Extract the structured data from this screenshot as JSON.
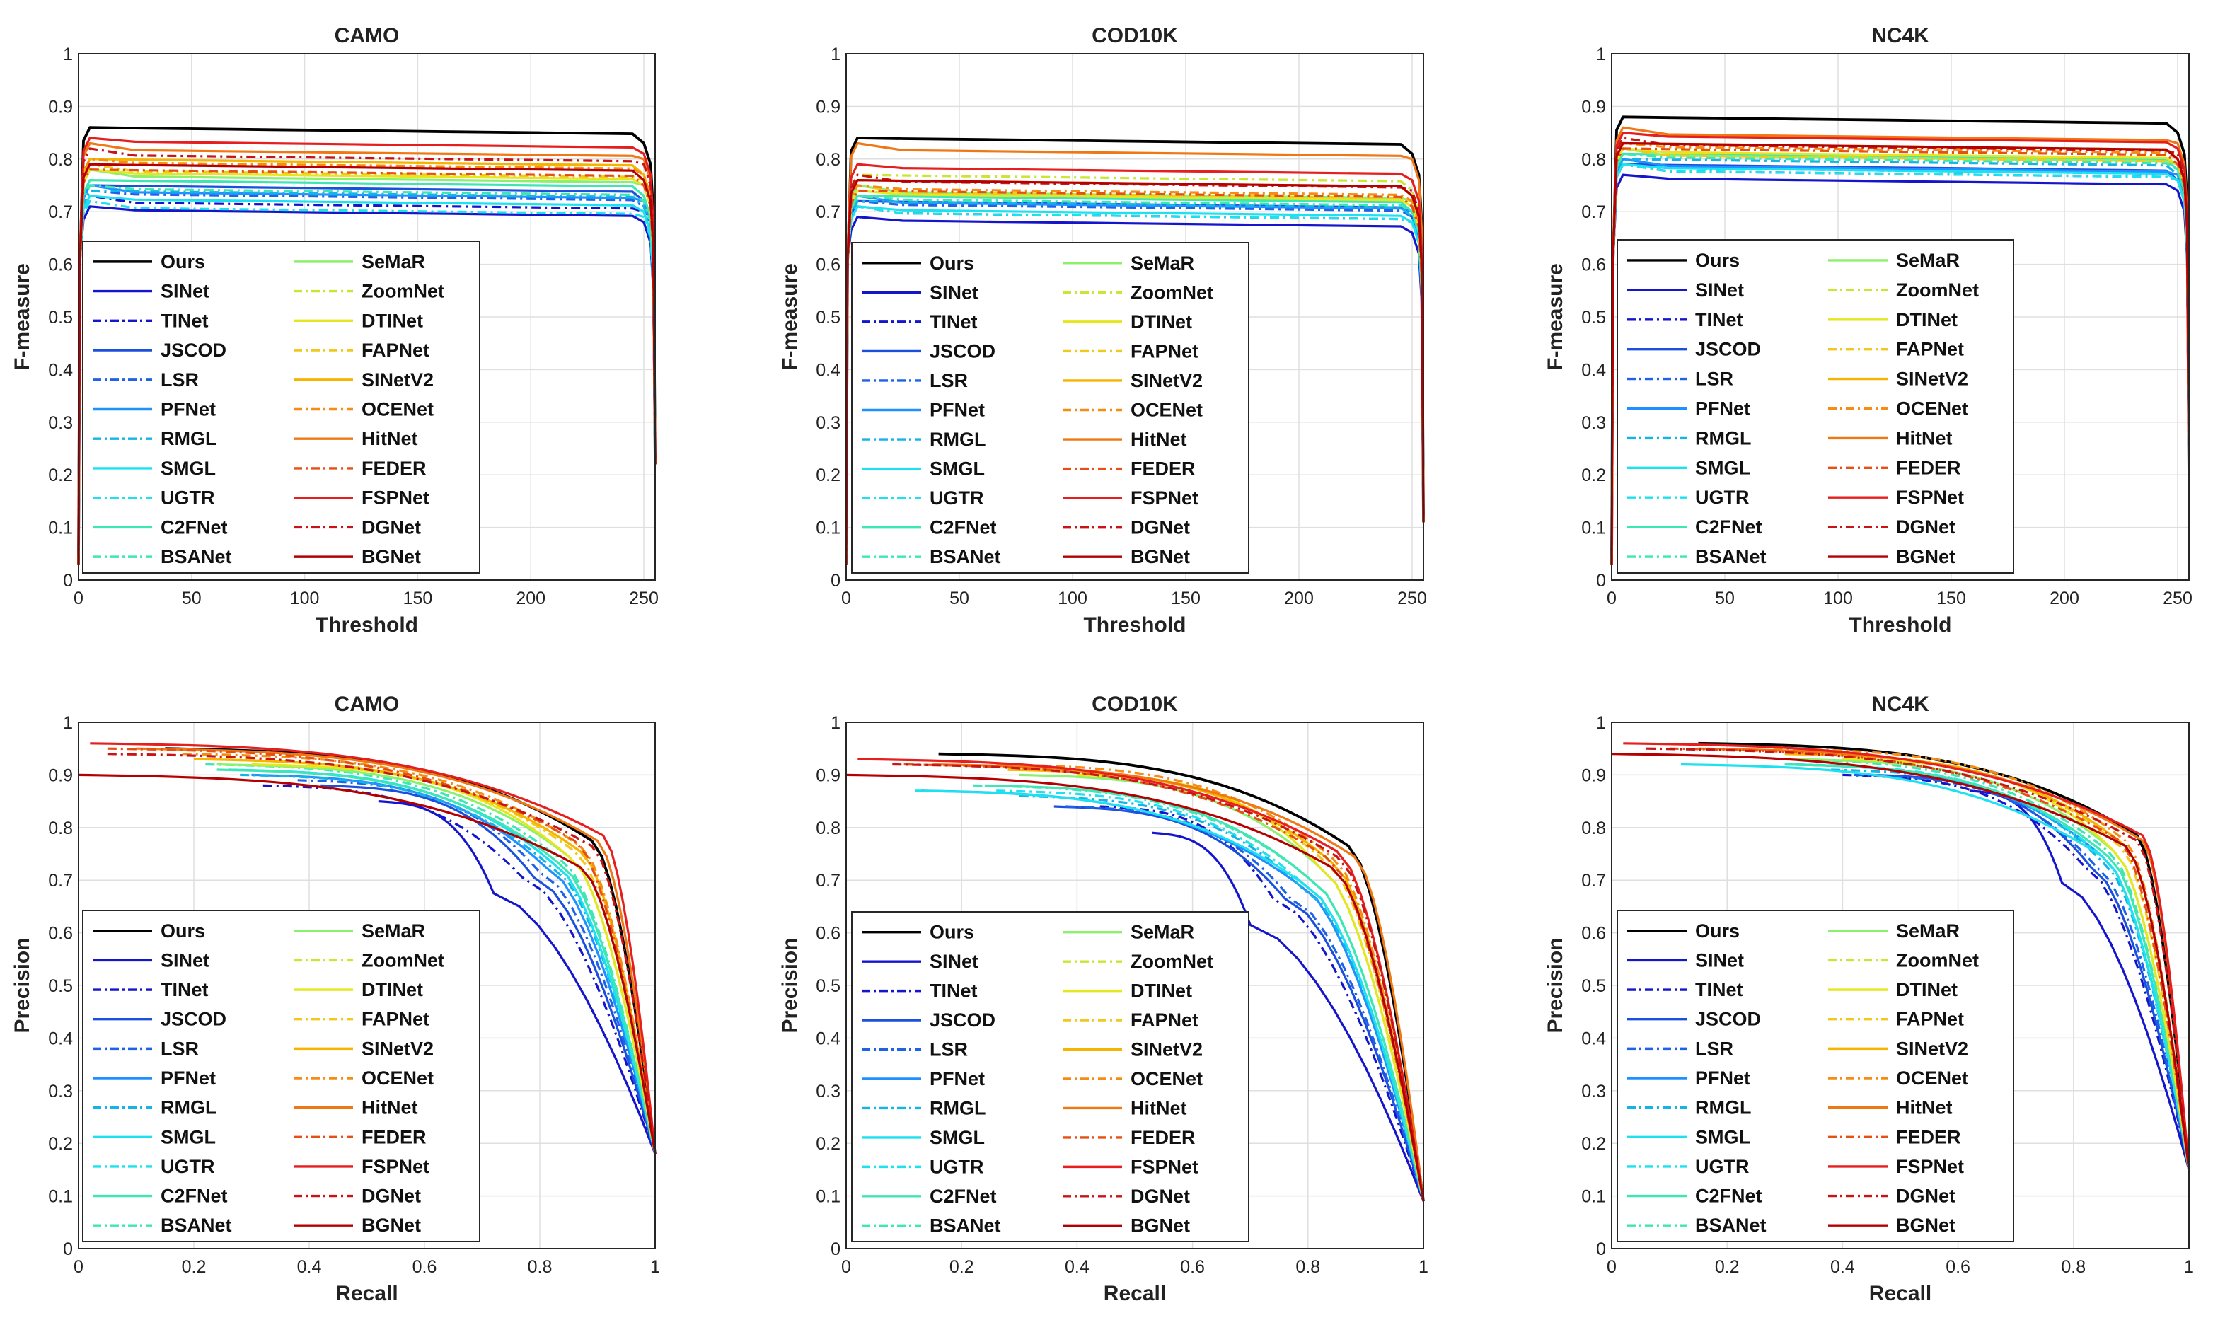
{
  "figure": {
    "panel_titles": [
      "CAMO",
      "COD10K",
      "NC4K"
    ]
  },
  "methods": [
    {
      "name": "Ours",
      "color": "#000000",
      "dash": "solid"
    },
    {
      "name": "SINet",
      "color": "#1515cc",
      "dash": "solid"
    },
    {
      "name": "TINet",
      "color": "#1515cc",
      "dash": "dashdot"
    },
    {
      "name": "JSCOD",
      "color": "#1b4fdd",
      "dash": "solid"
    },
    {
      "name": "LSR",
      "color": "#1e63e6",
      "dash": "dashdot"
    },
    {
      "name": "PFNet",
      "color": "#1e90ff",
      "dash": "solid"
    },
    {
      "name": "RMGL",
      "color": "#14b4e6",
      "dash": "dashdot"
    },
    {
      "name": "SMGL",
      "color": "#1ee1f0",
      "dash": "solid"
    },
    {
      "name": "UGTR",
      "color": "#1ee1f0",
      "dash": "dashdot"
    },
    {
      "name": "C2FNet",
      "color": "#3ee6b4",
      "dash": "solid"
    },
    {
      "name": "BSANet",
      "color": "#3ee6b4",
      "dash": "dashdot"
    },
    {
      "name": "SeMaR",
      "color": "#8cf06e",
      "dash": "solid"
    },
    {
      "name": "ZoomNet",
      "color": "#c8e632",
      "dash": "dashdot"
    },
    {
      "name": "DTINet",
      "color": "#e6e61e",
      "dash": "solid"
    },
    {
      "name": "FAPNet",
      "color": "#f0c81e",
      "dash": "dashdot"
    },
    {
      "name": "SINetV2",
      "color": "#f5b400",
      "dash": "solid"
    },
    {
      "name": "OCENet",
      "color": "#f58c14",
      "dash": "dashdot"
    },
    {
      "name": "HitNet",
      "color": "#f07814",
      "dash": "solid"
    },
    {
      "name": "FEDER",
      "color": "#e65014",
      "dash": "dashdot"
    },
    {
      "name": "FSPNet",
      "color": "#e61e1e",
      "dash": "solid"
    },
    {
      "name": "DGNet",
      "color": "#c81414",
      "dash": "dashdot"
    },
    {
      "name": "BGNet",
      "color": "#b40000",
      "dash": "solid"
    }
  ],
  "chart_data": [
    {
      "type": "line",
      "title": "CAMO",
      "xlabel": "Threshold",
      "ylabel": "F-measure",
      "xlim": [
        0,
        255
      ],
      "ylim": [
        0,
        1
      ],
      "xticks": [
        "0",
        "50",
        "100",
        "150",
        "200",
        "250"
      ],
      "yticks": [
        "0",
        "0.1",
        "0.2",
        "0.3",
        "0.4",
        "0.5",
        "0.6",
        "0.7",
        "0.8",
        "0.9",
        "1"
      ],
      "grid": true,
      "legend": "lower-left",
      "end_value": 0.22,
      "series_values": [
        0.86,
        0.71,
        0.73,
        0.75,
        0.74,
        0.75,
        0.74,
        0.73,
        0.72,
        0.76,
        0.75,
        0.78,
        0.8,
        0.78,
        0.79,
        0.8,
        0.8,
        0.83,
        0.78,
        0.84,
        0.82,
        0.79
      ]
    },
    {
      "type": "line",
      "title": "COD10K",
      "xlabel": "Threshold",
      "ylabel": "F-measure",
      "xlim": [
        0,
        255
      ],
      "ylim": [
        0,
        1
      ],
      "xticks": [
        "0",
        "50",
        "100",
        "150",
        "200",
        "250"
      ],
      "yticks": [
        "0",
        "0.1",
        "0.2",
        "0.3",
        "0.4",
        "0.5",
        "0.6",
        "0.7",
        "0.8",
        "0.9",
        "1"
      ],
      "grid": true,
      "legend": "lower-left",
      "end_value": 0.11,
      "series_values": [
        0.84,
        0.69,
        0.71,
        0.72,
        0.72,
        0.73,
        0.72,
        0.71,
        0.71,
        0.73,
        0.73,
        0.75,
        0.77,
        0.74,
        0.75,
        0.76,
        0.75,
        0.83,
        0.74,
        0.79,
        0.77,
        0.76
      ]
    },
    {
      "type": "line",
      "title": "NC4K",
      "xlabel": "Threshold",
      "ylabel": "F-measure",
      "xlim": [
        0,
        255
      ],
      "ylim": [
        0,
        1
      ],
      "xticks": [
        "0",
        "50",
        "100",
        "150",
        "200",
        "250"
      ],
      "yticks": [
        "0",
        "0.1",
        "0.2",
        "0.3",
        "0.4",
        "0.5",
        "0.6",
        "0.7",
        "0.8",
        "0.9",
        "1"
      ],
      "grid": true,
      "legend": "lower-left",
      "end_value": 0.19,
      "series_values": [
        0.88,
        0.77,
        0.79,
        0.79,
        0.79,
        0.8,
        0.8,
        0.79,
        0.79,
        0.81,
        0.81,
        0.82,
        0.83,
        0.82,
        0.82,
        0.83,
        0.83,
        0.86,
        0.82,
        0.85,
        0.84,
        0.83
      ]
    },
    {
      "type": "line",
      "title": "CAMO",
      "xlabel": "Recall",
      "ylabel": "Precision",
      "xlim": [
        0,
        1
      ],
      "ylim": [
        0,
        1
      ],
      "xticks": [
        "0",
        "0.2",
        "0.4",
        "0.6",
        "0.8",
        "1"
      ],
      "yticks": [
        "0",
        "0.1",
        "0.2",
        "0.3",
        "0.4",
        "0.5",
        "0.6",
        "0.7",
        "0.8",
        "0.9",
        "1"
      ],
      "grid": true,
      "legend": "lower-left",
      "end_value": 0.18,
      "start_recall": [
        0.15,
        0.52,
        0.32,
        0.42,
        0.38,
        0.3,
        0.28,
        0.26,
        0.26,
        0.24,
        0.22,
        0.24,
        0.2,
        0.3,
        0.22,
        0.2,
        0.18,
        0.1,
        0.05,
        0.02,
        0.05,
        0.0
      ],
      "start_precision": [
        0.95,
        0.85,
        0.88,
        0.88,
        0.89,
        0.9,
        0.9,
        0.91,
        0.91,
        0.91,
        0.92,
        0.92,
        0.93,
        0.92,
        0.93,
        0.93,
        0.94,
        0.95,
        0.95,
        0.96,
        0.94,
        0.9
      ],
      "knee_recall": [
        0.89,
        0.72,
        0.77,
        0.79,
        0.8,
        0.81,
        0.82,
        0.82,
        0.82,
        0.83,
        0.83,
        0.85,
        0.87,
        0.85,
        0.86,
        0.87,
        0.87,
        0.9,
        0.86,
        0.91,
        0.89,
        0.87
      ]
    },
    {
      "type": "line",
      "title": "COD10K",
      "xlabel": "Recall",
      "ylabel": "Precision",
      "xlim": [
        0,
        1
      ],
      "ylim": [
        0,
        1
      ],
      "xticks": [
        "0",
        "0.2",
        "0.4",
        "0.6",
        "0.8",
        "1"
      ],
      "yticks": [
        "0",
        "0.1",
        "0.2",
        "0.3",
        "0.4",
        "0.5",
        "0.6",
        "0.7",
        "0.8",
        "0.9",
        "1"
      ],
      "grid": true,
      "legend": "lower-left",
      "end_value": 0.09,
      "start_recall": [
        0.16,
        0.53,
        0.44,
        0.36,
        0.38,
        0.13,
        0.3,
        0.12,
        0.26,
        0.24,
        0.22,
        0.3,
        0.28,
        0.4,
        0.3,
        0.28,
        0.26,
        0.15,
        0.1,
        0.02,
        0.08,
        0.0
      ],
      "start_precision": [
        0.94,
        0.79,
        0.84,
        0.84,
        0.84,
        0.87,
        0.86,
        0.87,
        0.87,
        0.88,
        0.88,
        0.9,
        0.91,
        0.9,
        0.91,
        0.91,
        0.92,
        0.92,
        0.92,
        0.93,
        0.92,
        0.9
      ],
      "knee_recall": [
        0.87,
        0.7,
        0.74,
        0.76,
        0.77,
        0.78,
        0.79,
        0.79,
        0.79,
        0.8,
        0.8,
        0.82,
        0.84,
        0.82,
        0.83,
        0.84,
        0.84,
        0.88,
        0.83,
        0.85,
        0.85,
        0.84
      ]
    },
    {
      "type": "line",
      "title": "NC4K",
      "xlabel": "Recall",
      "ylabel": "Precision",
      "xlim": [
        0,
        1
      ],
      "ylim": [
        0,
        1
      ],
      "xticks": [
        "0",
        "0.2",
        "0.4",
        "0.6",
        "0.8",
        "1"
      ],
      "yticks": [
        "0",
        "0.1",
        "0.2",
        "0.3",
        "0.4",
        "0.5",
        "0.6",
        "0.7",
        "0.8",
        "0.9",
        "1"
      ],
      "grid": true,
      "legend": "lower-left",
      "end_value": 0.15,
      "start_recall": [
        0.15,
        0.62,
        0.4,
        0.45,
        0.42,
        0.3,
        0.38,
        0.12,
        0.32,
        0.3,
        0.28,
        0.32,
        0.3,
        0.4,
        0.32,
        0.3,
        0.28,
        0.15,
        0.1,
        0.02,
        0.06,
        0.0
      ],
      "start_precision": [
        0.96,
        0.87,
        0.9,
        0.9,
        0.9,
        0.92,
        0.91,
        0.92,
        0.92,
        0.92,
        0.93,
        0.93,
        0.94,
        0.93,
        0.94,
        0.94,
        0.95,
        0.95,
        0.95,
        0.96,
        0.95,
        0.94
      ],
      "knee_recall": [
        0.91,
        0.78,
        0.82,
        0.83,
        0.84,
        0.85,
        0.85,
        0.85,
        0.85,
        0.86,
        0.86,
        0.87,
        0.89,
        0.87,
        0.88,
        0.89,
        0.89,
        0.92,
        0.88,
        0.92,
        0.91,
        0.89
      ]
    }
  ]
}
